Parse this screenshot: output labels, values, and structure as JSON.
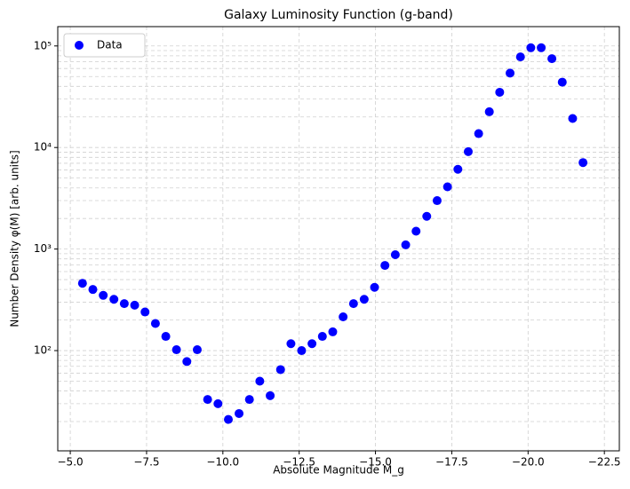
{
  "chart_data": {
    "type": "scatter",
    "title": "Galaxy Luminosity Function (g-band)",
    "xlabel": "Absolute Magnitude M_g",
    "ylabel": "Number Density φ(M) [arb. units]",
    "x": [
      -5.4,
      -5.74,
      -6.08,
      -6.43,
      -6.77,
      -7.11,
      -7.45,
      -7.79,
      -8.13,
      -8.48,
      -8.82,
      -9.16,
      -9.5,
      -9.84,
      -10.18,
      -10.53,
      -10.87,
      -11.21,
      -11.55,
      -11.89,
      -12.23,
      -12.58,
      -12.92,
      -13.26,
      -13.6,
      -13.94,
      -14.28,
      -14.63,
      -14.97,
      -15.31,
      -15.65,
      -15.99,
      -16.33,
      -16.68,
      -17.02,
      -17.36,
      -17.7,
      -18.04,
      -18.38,
      -18.73,
      -19.07,
      -19.41,
      -19.75,
      -20.09,
      -20.43,
      -20.78,
      -21.12,
      -21.46,
      -21.8
    ],
    "series": [
      {
        "name": "Data",
        "color": "#0000ff",
        "values": [
          460,
          400,
          350,
          320,
          290,
          280,
          240,
          185,
          138,
          102,
          78,
          102,
          33,
          30,
          21,
          24,
          33,
          50,
          36,
          65,
          117,
          100,
          117,
          138,
          153,
          215,
          290,
          320,
          420,
          690,
          880,
          1100,
          1500,
          2100,
          3000,
          4100,
          6100,
          9100,
          13700,
          22500,
          35000,
          54000,
          78000,
          96000,
          96000,
          75000,
          44000,
          19300,
          7100
        ]
      }
    ],
    "xlim": [
      -4.59,
      -22.99
    ],
    "xticks": [
      {
        "value": -5,
        "label": "−5.0"
      },
      {
        "value": -7.5,
        "label": "−7.5"
      },
      {
        "value": -10,
        "label": "−10.0"
      },
      {
        "value": -12.5,
        "label": "−12.5"
      },
      {
        "value": -15,
        "label": "−15.0"
      },
      {
        "value": -17.5,
        "label": "−17.5"
      },
      {
        "value": -20,
        "label": "−20.0"
      },
      {
        "value": -22.5,
        "label": "−22.5"
      }
    ],
    "ylim": [
      10.3,
      155000
    ],
    "yscale": "log",
    "yticks": [
      {
        "value": 100,
        "label": "10²"
      },
      {
        "value": 1000,
        "label": "10³"
      },
      {
        "value": 10000,
        "label": "10⁴"
      },
      {
        "value": 100000,
        "label": "10⁵"
      }
    ],
    "yminorticks": [
      20,
      30,
      40,
      50,
      60,
      70,
      80,
      90,
      200,
      300,
      400,
      500,
      600,
      700,
      800,
      900,
      2000,
      3000,
      4000,
      5000,
      6000,
      7000,
      8000,
      9000,
      20000,
      30000,
      40000,
      50000,
      60000,
      70000,
      80000,
      90000
    ],
    "grid": true,
    "legend": "upper left"
  }
}
